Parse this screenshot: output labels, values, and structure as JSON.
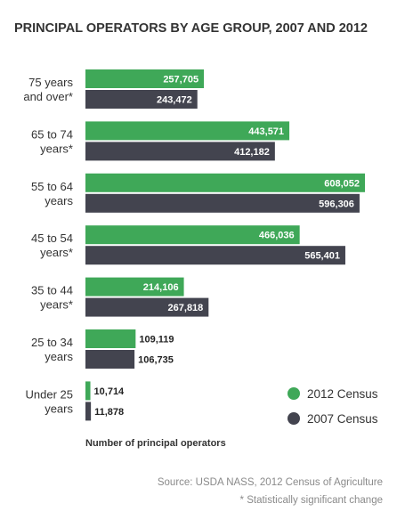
{
  "chart_data": {
    "type": "bar",
    "orientation": "horizontal",
    "title": "PRINCIPAL OPERATORS BY AGE GROUP, 2007 AND 2012",
    "xlabel": "Number of principal operators",
    "ylabel": "",
    "categories": [
      [
        "75 years",
        "and over*"
      ],
      [
        "65 to 74",
        "years*"
      ],
      [
        "55 to 64",
        "years"
      ],
      [
        "45 to 54",
        "years*"
      ],
      [
        "35 to 44",
        "years*"
      ],
      [
        "25 to 34",
        "years"
      ],
      [
        "Under 25",
        "years"
      ]
    ],
    "series": [
      {
        "name": "2012 Census",
        "color": "#3fa858",
        "values": [
          257705,
          443571,
          608052,
          466036,
          214106,
          109119,
          10714
        ],
        "labels": [
          "257,705",
          "443,571",
          "608,052",
          "466,036",
          "214,106",
          "109,119",
          "10,714"
        ]
      },
      {
        "name": "2007 Census",
        "color": "#43444f",
        "values": [
          243472,
          412182,
          596306,
          565401,
          267818,
          106735,
          11878
        ],
        "labels": [
          "243,472",
          "412,182",
          "596,306",
          "565,401",
          "267,818",
          "106,735",
          "11,878"
        ]
      }
    ],
    "xlim": [
      0,
      608052
    ],
    "grid": false,
    "legend_position": "bottom-right"
  },
  "footer": {
    "source": "Source: USDA NASS, 2012 Census of Agriculture",
    "note": "* Statistically significant change"
  }
}
